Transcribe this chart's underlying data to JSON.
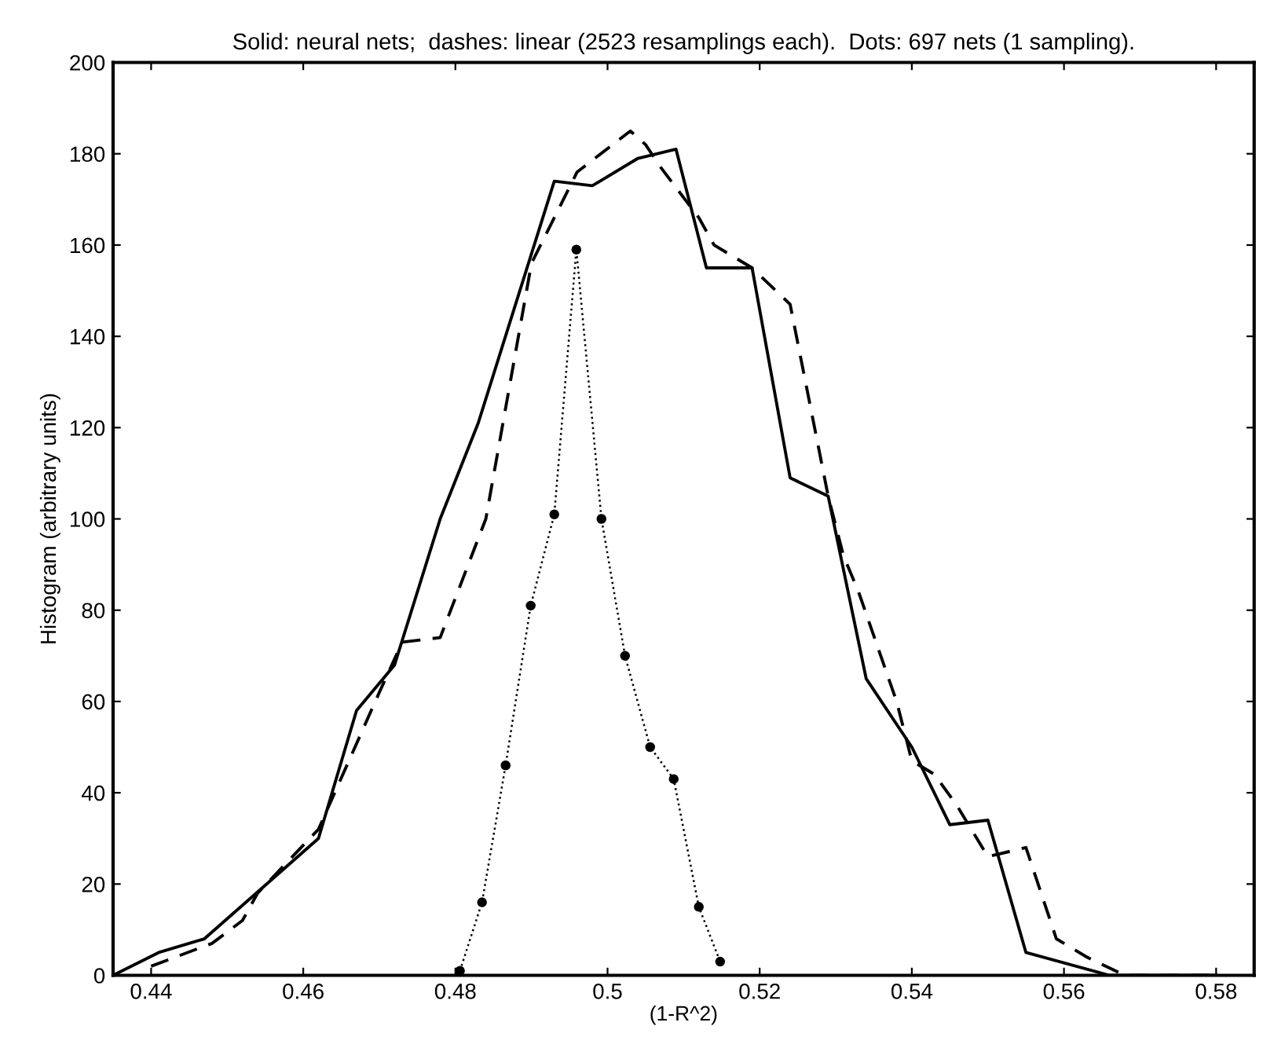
{
  "chart_data": {
    "type": "line",
    "title": "Solid: neural nets;  dashes: linear (2523 resamplings each).  Dots: 697 nets (1 sampling).",
    "xlabel": "(1-R^2)",
    "ylabel": "Histogram (arbitrary units)",
    "xlim": [
      0.435,
      0.585
    ],
    "xticks": [
      0.44,
      0.46,
      0.48,
      0.5,
      0.52,
      0.54,
      0.56,
      0.58
    ],
    "ylim": [
      0,
      200
    ],
    "yticks": [
      0,
      20,
      40,
      60,
      80,
      100,
      120,
      140,
      160,
      180,
      200
    ],
    "series": [
      {
        "color": "#000000",
        "line_style": "solid",
        "marker": "none",
        "x": [
          0.435,
          0.441,
          0.447,
          0.462,
          0.467,
          0.472,
          0.478,
          0.483,
          0.493,
          0.498,
          0.504,
          0.509,
          0.513,
          0.519,
          0.524,
          0.529,
          0.534,
          0.54,
          0.545,
          0.55,
          0.555,
          0.566,
          0.58
        ],
        "values": [
          0,
          5,
          8,
          30,
          58,
          68,
          100,
          121,
          174,
          173,
          179,
          181,
          155,
          155,
          109,
          105,
          65,
          50,
          33,
          34,
          5,
          0,
          0
        ]
      },
      {
        "color": "#000000",
        "line_style": "dashed",
        "marker": "none",
        "x": [
          0.44,
          0.448,
          0.452,
          0.454,
          0.462,
          0.47,
          0.473,
          0.478,
          0.484,
          0.49,
          0.496,
          0.503,
          0.505,
          0.507,
          0.512,
          0.514,
          0.519,
          0.524,
          0.529,
          0.531,
          0.533,
          0.538,
          0.54,
          0.543,
          0.546,
          0.55,
          0.555,
          0.559,
          0.563,
          0.568,
          0.58
        ],
        "values": [
          2,
          7,
          12,
          18,
          32,
          62,
          73,
          74,
          100,
          156,
          176,
          185,
          182,
          177,
          166,
          160,
          155,
          147,
          105,
          92,
          84,
          60,
          47,
          44,
          37,
          26,
          28,
          8,
          4,
          0,
          0
        ]
      },
      {
        "color": "#000000",
        "line_style": "dotted",
        "marker": "circle",
        "x": [
          0.4806,
          0.4835,
          0.4866,
          0.4899,
          0.493,
          0.4959,
          0.4992,
          0.5023,
          0.5056,
          0.5087,
          0.512,
          0.5148
        ],
        "values": [
          1,
          16,
          46,
          81,
          101,
          159,
          100,
          70,
          50,
          43,
          15,
          3
        ]
      }
    ]
  }
}
